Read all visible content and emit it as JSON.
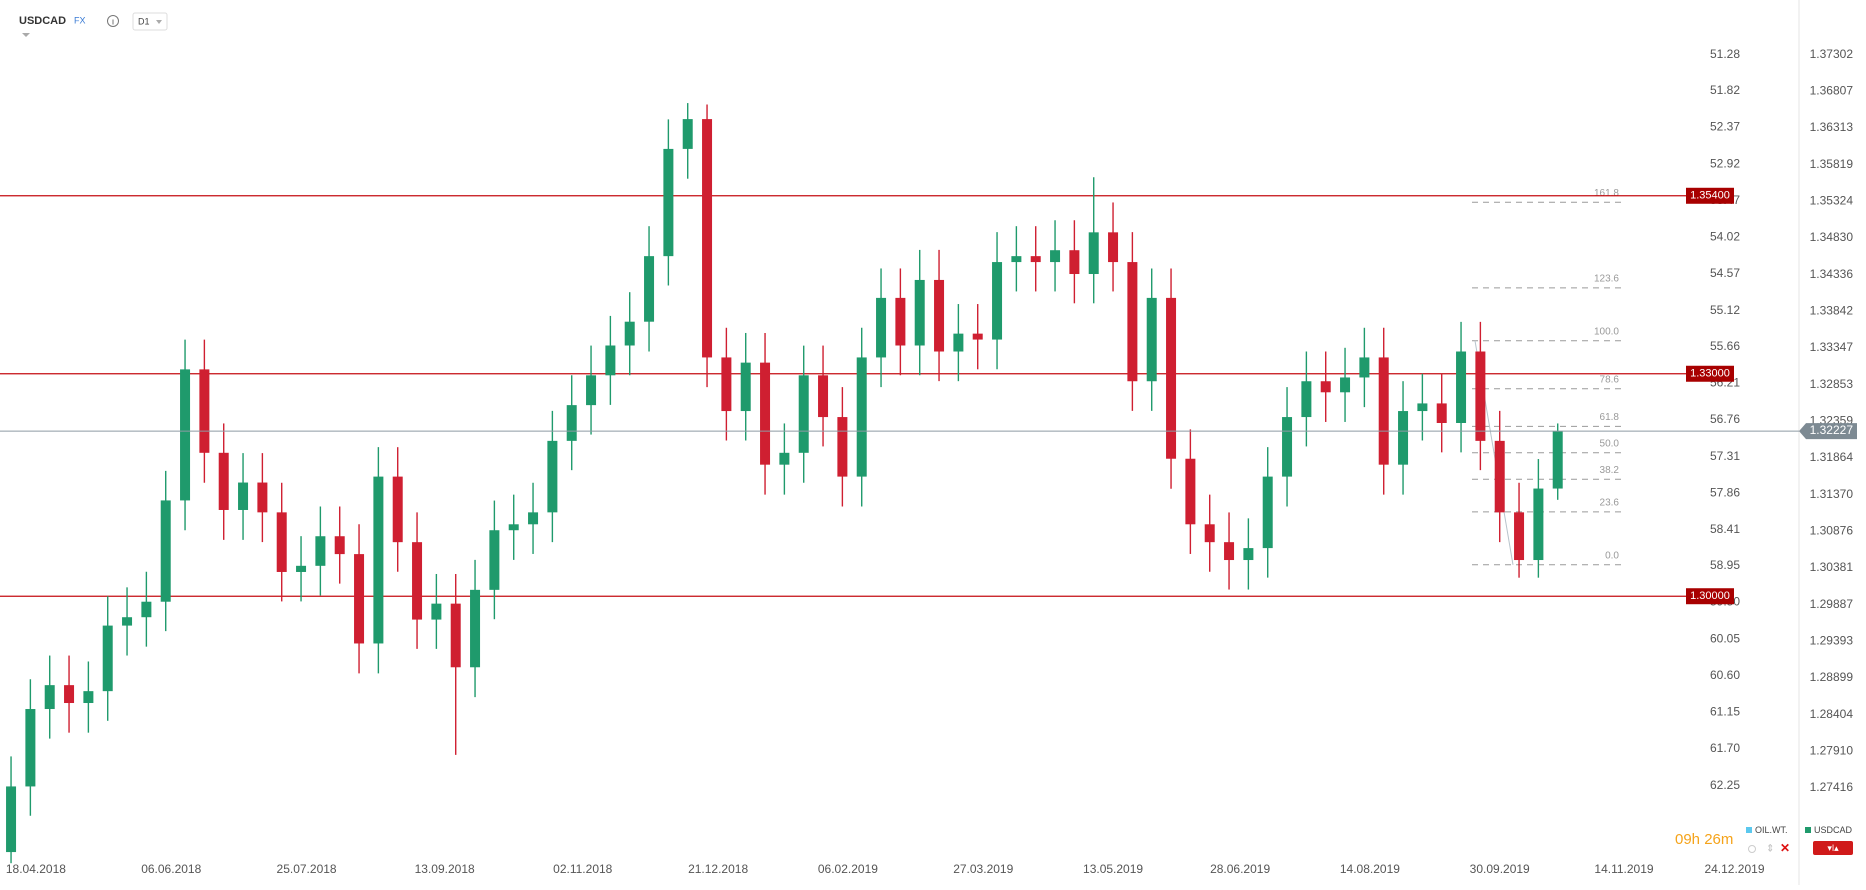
{
  "header": {
    "symbol": "USDCAD",
    "market": "FX",
    "timeframe": "D1"
  },
  "chart_data": {
    "type": "candlestick",
    "x": [
      "09.04.2018",
      "16.04.2018",
      "23.04.2018",
      "30.04.2018",
      "07.05.2018",
      "14.05.2018",
      "21.05.2018",
      "28.05.2018",
      "04.06.2018",
      "11.06.2018",
      "18.06.2018",
      "25.06.2018",
      "02.07.2018",
      "09.07.2018",
      "16.07.2018",
      "23.07.2018",
      "30.07.2018",
      "06.08.2018",
      "13.08.2018",
      "20.08.2018",
      "27.08.2018",
      "03.09.2018",
      "10.09.2018",
      "17.09.2018",
      "24.09.2018",
      "01.10.2018",
      "08.10.2018",
      "15.10.2018",
      "22.10.2018",
      "29.10.2018",
      "05.11.2018",
      "12.11.2018",
      "19.11.2018",
      "26.11.2018",
      "03.12.2018",
      "10.12.2018",
      "17.12.2018",
      "24.12.2018",
      "31.12.2018",
      "07.01.2019",
      "14.01.2019",
      "21.01.2019",
      "28.01.2019",
      "04.02.2019",
      "11.02.2019",
      "18.02.2019",
      "25.02.2019",
      "04.03.2019",
      "11.03.2019",
      "18.03.2019",
      "25.03.2019",
      "01.04.2019",
      "08.04.2019",
      "15.04.2019",
      "22.04.2019",
      "29.04.2019",
      "06.05.2019",
      "13.05.2019",
      "20.05.2019",
      "27.05.2019",
      "03.06.2019",
      "10.06.2019",
      "17.06.2019",
      "24.06.2019",
      "01.07.2019",
      "08.07.2019",
      "15.07.2019",
      "22.07.2019",
      "29.07.2019",
      "05.08.2019",
      "12.08.2019",
      "19.08.2019",
      "26.08.2019",
      "02.09.2019",
      "09.09.2019",
      "16.09.2019",
      "23.09.2019",
      "30.09.2019",
      "07.10.2019",
      "14.10.2019",
      "21.10.2019"
    ],
    "open": [
      1.2655,
      1.27435,
      1.28479,
      1.28801,
      1.2856,
      1.2872,
      1.29604,
      1.29717,
      1.29926,
      1.31292,
      1.33059,
      1.31934,
      1.31163,
      1.31533,
      1.31131,
      1.30327,
      1.3041,
      1.30809,
      1.30568,
      1.29363,
      1.31613,
      1.30729,
      1.29685,
      1.299,
      1.29042,
      1.30086,
      1.3089,
      1.3097,
      1.31131,
      1.32095,
      1.32577,
      1.32979,
      1.33381,
      1.33702,
      1.34586,
      1.36032,
      1.36434,
      1.3322,
      1.32497,
      1.3315,
      1.31774,
      1.31934,
      1.32979,
      1.32416,
      1.31613,
      1.3322,
      1.34023,
      1.33381,
      1.34265,
      1.333,
      1.33541,
      1.33461,
      1.34506,
      1.34586,
      1.34506,
      1.34666,
      1.34345,
      1.34907,
      1.34506,
      1.32899,
      1.34023,
      1.31854,
      1.3097,
      1.30729,
      1.30488,
      1.30649,
      1.31613,
      1.32416,
      1.32899,
      1.3275,
      1.3295,
      1.3322,
      1.31774,
      1.32497,
      1.326,
      1.32336,
      1.333,
      1.32095,
      1.31131,
      1.30488,
      1.31452
    ],
    "high": [
      1.2784,
      1.2888,
      1.292,
      1.292,
      1.2912,
      1.3,
      1.3012,
      1.3033,
      1.3169,
      1.3346,
      1.3346,
      1.3233,
      1.3193,
      1.3193,
      1.3153,
      1.3081,
      1.3121,
      1.3121,
      1.3097,
      1.3201,
      1.3201,
      1.3113,
      1.303,
      1.303,
      1.3049,
      1.3129,
      1.3137,
      1.3153,
      1.325,
      1.3298,
      1.3338,
      1.3378,
      1.341,
      1.3499,
      1.3643,
      1.3665,
      1.3663,
      1.3362,
      1.3355,
      1.3355,
      1.3233,
      1.3338,
      1.3338,
      1.3282,
      1.3362,
      1.3442,
      1.3442,
      1.3467,
      1.3467,
      1.3394,
      1.3394,
      1.3491,
      1.3499,
      1.3499,
      1.3507,
      1.3507,
      1.3565,
      1.3531,
      1.3491,
      1.3442,
      1.3442,
      1.3225,
      1.3137,
      1.3113,
      1.3105,
      1.3201,
      1.3282,
      1.333,
      1.333,
      1.3335,
      1.3362,
      1.3362,
      1.329,
      1.33,
      1.33,
      1.337,
      1.337,
      1.325,
      1.3153,
      1.3185,
      1.3233
    ],
    "low": [
      1.264,
      1.2704,
      1.2808,
      1.2816,
      1.2816,
      1.2832,
      1.292,
      1.2932,
      1.2953,
      1.3089,
      1.3153,
      1.3076,
      1.3076,
      1.3073,
      1.2993,
      1.2993,
      1.3001,
      1.3017,
      1.2896,
      1.2896,
      1.3033,
      1.2929,
      1.2929,
      1.2786,
      1.2864,
      1.2969,
      1.3049,
      1.3057,
      1.3073,
      1.317,
      1.3218,
      1.3258,
      1.3298,
      1.333,
      1.3419,
      1.3563,
      1.3282,
      1.321,
      1.321,
      1.3137,
      1.3137,
      1.3153,
      1.3202,
      1.3121,
      1.3121,
      1.3282,
      1.3298,
      1.3298,
      1.329,
      1.329,
      1.3306,
      1.3306,
      1.3411,
      1.3411,
      1.3411,
      1.3395,
      1.3395,
      1.3411,
      1.325,
      1.325,
      1.3145,
      1.3057,
      1.3033,
      1.3009,
      1.3009,
      1.3025,
      1.3121,
      1.3202,
      1.3235,
      1.3235,
      1.3255,
      1.3137,
      1.3137,
      1.321,
      1.3194,
      1.3194,
      1.317,
      1.3073,
      1.3025,
      1.3025,
      1.313
    ],
    "close": [
      1.27435,
      1.28479,
      1.28801,
      1.2856,
      1.2872,
      1.29604,
      1.29717,
      1.29926,
      1.31292,
      1.33059,
      1.31934,
      1.31163,
      1.31533,
      1.31131,
      1.30327,
      1.3041,
      1.30809,
      1.30568,
      1.29363,
      1.31613,
      1.30729,
      1.29685,
      1.299,
      1.29042,
      1.30086,
      1.3089,
      1.3097,
      1.31131,
      1.32095,
      1.32577,
      1.32979,
      1.33381,
      1.33702,
      1.34586,
      1.36032,
      1.36434,
      1.3322,
      1.32497,
      1.3315,
      1.31774,
      1.31934,
      1.32979,
      1.32416,
      1.31613,
      1.3322,
      1.34023,
      1.33381,
      1.34265,
      1.333,
      1.33541,
      1.33461,
      1.34506,
      1.34586,
      1.34506,
      1.34666,
      1.34345,
      1.34907,
      1.34506,
      1.32899,
      1.34023,
      1.31854,
      1.3097,
      1.30729,
      1.30488,
      1.30649,
      1.31613,
      1.32416,
      1.32899,
      1.3275,
      1.3295,
      1.3322,
      1.31774,
      1.32497,
      1.326,
      1.32336,
      1.333,
      1.32095,
      1.31131,
      1.30488,
      1.31452,
      1.32227
    ],
    "up_color": "#1f9a6c",
    "down_color": "#cf1f31",
    "xlim": [
      "05.04.2018",
      "26.12.2019"
    ],
    "xticks": [
      "18.04.2018",
      "06.06.2018",
      "25.07.2018",
      "13.09.2018",
      "02.11.2018",
      "21.12.2018",
      "06.02.2019",
      "27.03.2019",
      "13.05.2019",
      "28.06.2019",
      "14.08.2019",
      "30.09.2019",
      "14.11.2019",
      "24.12.2019"
    ],
    "ylim": [
      1.2647,
      1.3804
    ],
    "yticks": [
      1.37302,
      1.36807,
      1.36313,
      1.35819,
      1.35324,
      {
        "value": 1.3483,
        "label": "1.34830"
      },
      1.34336,
      1.33842,
      1.33347,
      1.32853,
      1.32359,
      1.31864,
      {
        "value": 1.3137,
        "label": "1.31370"
      },
      1.30876,
      1.30381,
      1.29887,
      1.29393,
      1.28899,
      1.28404,
      {
        "value": 1.2791,
        "label": "1.27910"
      },
      1.27416
    ],
    "y2lim": [
      63.335,
      50.457
    ],
    "y2ticks": [
      51.28,
      51.82,
      52.37,
      52.92,
      53.47,
      54.02,
      54.57,
      55.12,
      55.66,
      56.21,
      56.76,
      57.31,
      57.86,
      58.41,
      58.95,
      {
        "value": 59.5,
        "label": "59.50"
      },
      60.05,
      {
        "value": 60.6,
        "label": "60.60"
      },
      61.15,
      {
        "value": 61.7,
        "label": "61.70"
      },
      62.25
    ],
    "grid": false,
    "levels": [
      {
        "value": 1.354,
        "label": "1.35400"
      },
      {
        "value": 1.33,
        "label": "1.33000"
      },
      {
        "value": 1.3,
        "label": "1.30000"
      }
    ],
    "level_color": "#c40d12",
    "last_price": 1.32227,
    "fibonacci": {
      "high": 1.33445,
      "low": 1.30424,
      "levels": [
        161.8,
        123.6,
        {
          "value": 100,
          "label": "100.0"
        },
        78.6,
        61.8,
        {
          "value": 50,
          "label": "50.0"
        },
        38.2,
        23.6,
        {
          "value": 0,
          "label": "0.0"
        }
      ]
    },
    "legend": [
      {
        "name": "OIL.WT.",
        "color": "#5bc8ee"
      },
      {
        "name": "USDCAD",
        "color": "#1f9a6c"
      }
    ]
  },
  "footer": {
    "timer": "09h 26m"
  }
}
